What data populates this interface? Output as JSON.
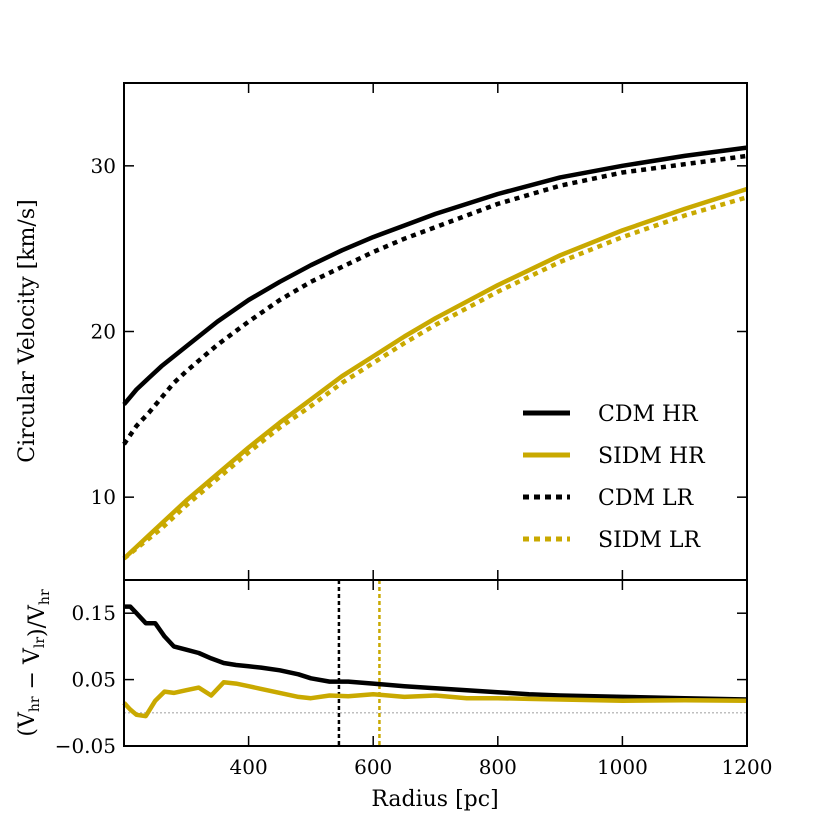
{
  "colors": {
    "cdm": "#000000",
    "sidm": "#c9a900",
    "zero_line": "#aaaaaa"
  },
  "chart_data": [
    {
      "type": "line",
      "panel": "top",
      "ylabel": "Circular Velocity [km/s]",
      "xlim": [
        200,
        1200
      ],
      "ylim": [
        5,
        35
      ],
      "yticks": [
        10,
        20,
        30
      ],
      "ytick_labels": [
        "10",
        "20",
        "30"
      ],
      "x": [
        200,
        220,
        240,
        260,
        280,
        300,
        350,
        400,
        450,
        500,
        550,
        600,
        650,
        700,
        800,
        900,
        1000,
        1100,
        1200
      ],
      "series": [
        {
          "name": "CDM HR",
          "style": "solid",
          "color": "cdm",
          "values": [
            15.6,
            16.5,
            17.2,
            17.9,
            18.5,
            19.1,
            20.6,
            21.9,
            23.0,
            24.0,
            24.9,
            25.7,
            26.4,
            27.1,
            28.3,
            29.3,
            30.0,
            30.6,
            31.1
          ]
        },
        {
          "name": "SIDM HR",
          "style": "solid",
          "color": "sidm",
          "values": [
            6.3,
            7.0,
            7.7,
            8.4,
            9.1,
            9.8,
            11.4,
            13.0,
            14.5,
            15.9,
            17.3,
            18.5,
            19.7,
            20.8,
            22.8,
            24.6,
            26.1,
            27.4,
            28.6
          ]
        },
        {
          "name": "CDM LR",
          "style": "dotted",
          "color": "cdm",
          "values": [
            13.2,
            14.3,
            15.1,
            16.0,
            16.9,
            17.6,
            19.2,
            20.6,
            21.9,
            23.0,
            23.9,
            24.8,
            25.6,
            26.3,
            27.7,
            28.8,
            29.6,
            30.1,
            30.6
          ]
        },
        {
          "name": "SIDM LR",
          "style": "dotted",
          "color": "sidm",
          "values": [
            6.3,
            6.9,
            7.5,
            8.1,
            8.8,
            9.5,
            11.1,
            12.7,
            14.2,
            15.5,
            16.9,
            18.1,
            19.3,
            20.4,
            22.4,
            24.2,
            25.7,
            27.0,
            28.1
          ]
        }
      ],
      "legend": {
        "position": "lower-right",
        "entries": [
          {
            "label": "CDM HR",
            "style": "solid",
            "color": "cdm"
          },
          {
            "label": "SIDM HR",
            "style": "solid",
            "color": "sidm"
          },
          {
            "label": "CDM LR",
            "style": "dotted",
            "color": "cdm"
          },
          {
            "label": "SIDM LR",
            "style": "dotted",
            "color": "sidm"
          }
        ]
      }
    },
    {
      "type": "line",
      "panel": "bottom",
      "xlabel": "Radius [pc]",
      "ylabel": "(V_hr − V_lr)/V_hr",
      "xlim": [
        200,
        1200
      ],
      "ylim": [
        -0.05,
        0.2
      ],
      "xticks": [
        400,
        600,
        800,
        1000,
        1200
      ],
      "xtick_labels": [
        "400",
        "600",
        "800",
        "1000",
        "1200"
      ],
      "yticks": [
        -0.05,
        0.05,
        0.15
      ],
      "ytick_labels": [
        "−0.05",
        "0.05",
        "0.15"
      ],
      "zero_line": 0,
      "vlines": [
        {
          "x": 545,
          "color": "cdm",
          "style": "dashed"
        },
        {
          "x": 610,
          "color": "sidm",
          "style": "dashed"
        }
      ],
      "series": [
        {
          "name": "CDM",
          "color": "cdm",
          "x": [
            200,
            210,
            220,
            235,
            250,
            265,
            280,
            300,
            320,
            340,
            360,
            380,
            400,
            420,
            450,
            480,
            500,
            530,
            560,
            600,
            650,
            700,
            750,
            800,
            850,
            900,
            1000,
            1100,
            1200
          ],
          "values": [
            0.16,
            0.16,
            0.15,
            0.135,
            0.135,
            0.115,
            0.1,
            0.095,
            0.09,
            0.082,
            0.075,
            0.072,
            0.07,
            0.068,
            0.064,
            0.058,
            0.052,
            0.047,
            0.047,
            0.044,
            0.04,
            0.037,
            0.034,
            0.031,
            0.028,
            0.026,
            0.024,
            0.022,
            0.02
          ]
        },
        {
          "name": "SIDM",
          "color": "sidm",
          "x": [
            200,
            210,
            220,
            235,
            250,
            265,
            280,
            300,
            320,
            340,
            360,
            380,
            400,
            420,
            450,
            480,
            500,
            530,
            560,
            600,
            650,
            700,
            750,
            800,
            850,
            900,
            1000,
            1100,
            1200
          ],
          "values": [
            0.015,
            0.005,
            -0.003,
            -0.005,
            0.018,
            0.032,
            0.03,
            0.034,
            0.038,
            0.026,
            0.046,
            0.044,
            0.04,
            0.036,
            0.03,
            0.024,
            0.022,
            0.026,
            0.025,
            0.028,
            0.024,
            0.026,
            0.022,
            0.022,
            0.021,
            0.02,
            0.018,
            0.019,
            0.018
          ]
        }
      ]
    }
  ]
}
